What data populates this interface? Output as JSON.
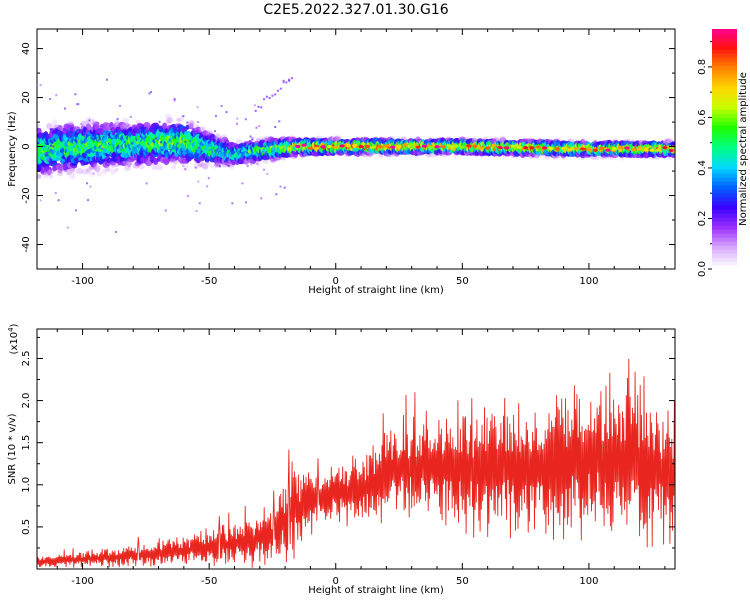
{
  "figure_title": "C2E5.2022.327.01.30.G16",
  "colors": {
    "snr_line": "#e8261f",
    "colormap": [
      "#ffffff",
      "#d9a8ff",
      "#9b30ff",
      "#3a00ff",
      "#0060ff",
      "#00d8ff",
      "#00ff80",
      "#20ff00",
      "#c8ff00",
      "#ffd400",
      "#ff8000",
      "#ff1010",
      "#ff00a0"
    ]
  },
  "chart_data": [
    {
      "type": "heatmap",
      "xlabel": "Height of straight line (km)",
      "ylabel": "Frequency (Hz)",
      "xlim": [
        -118,
        134
      ],
      "ylim": [
        -50,
        48
      ],
      "x_ticks": [
        -100,
        -50,
        0,
        50,
        100
      ],
      "y_ticks": [
        -40,
        -20,
        0,
        20,
        40
      ],
      "colorbar": {
        "label": "Normalized spectral amplitude",
        "range": [
          0,
          0.95
        ],
        "ticks": [
          0.0,
          0.2,
          0.4,
          0.6,
          0.8
        ]
      },
      "ridge_profile": [
        {
          "x": -118,
          "center": -2,
          "spread": 9,
          "peak": 0.55
        },
        {
          "x": -100,
          "center": 0,
          "spread": 9,
          "peak": 0.55
        },
        {
          "x": -80,
          "center": 1,
          "spread": 8,
          "peak": 0.55
        },
        {
          "x": -60,
          "center": 2,
          "spread": 8,
          "peak": 0.6
        },
        {
          "x": -50,
          "center": -1,
          "spread": 6,
          "peak": 0.55
        },
        {
          "x": -40,
          "center": -3,
          "spread": 4,
          "peak": 0.5
        },
        {
          "x": -25,
          "center": -1,
          "spread": 4,
          "peak": 0.6
        },
        {
          "x": -15,
          "center": 0,
          "spread": 3,
          "peak": 0.75
        },
        {
          "x": 0,
          "center": 0,
          "spread": 2.5,
          "peak": 0.85
        },
        {
          "x": 50,
          "center": 0,
          "spread": 2.5,
          "peak": 0.8
        },
        {
          "x": 100,
          "center": -1,
          "spread": 2.5,
          "peak": 0.78
        },
        {
          "x": 134,
          "center": -1,
          "spread": 2.5,
          "peak": 0.75
        }
      ]
    },
    {
      "type": "line",
      "xlabel": "Height of straight line (km)",
      "ylabel": "SNR (10 * v/v)",
      "y_multiplier_label": "(x10",
      "y_multiplier_exp": "4",
      "xlim": [
        -118,
        134
      ],
      "ylim": [
        0,
        2.85
      ],
      "x_ticks": [
        -100,
        -50,
        0,
        50,
        100
      ],
      "y_ticks": [
        0.5,
        1.0,
        1.5,
        2.0,
        2.5
      ],
      "series": [
        {
          "envelope": [
            {
              "x": -118,
              "mean": 0.08,
              "amp": 0.08
            },
            {
              "x": -100,
              "mean": 0.12,
              "amp": 0.1
            },
            {
              "x": -80,
              "mean": 0.16,
              "amp": 0.15
            },
            {
              "x": -60,
              "mean": 0.22,
              "amp": 0.18
            },
            {
              "x": -40,
              "mean": 0.3,
              "amp": 0.28
            },
            {
              "x": -25,
              "mean": 0.4,
              "amp": 0.35
            },
            {
              "x": -17,
              "mean": 0.7,
              "amp": 0.6
            },
            {
              "x": -5,
              "mean": 0.85,
              "amp": 0.3
            },
            {
              "x": 10,
              "mean": 0.95,
              "amp": 0.45
            },
            {
              "x": 25,
              "mean": 1.2,
              "amp": 0.6
            },
            {
              "x": 40,
              "mean": 1.2,
              "amp": 0.7
            },
            {
              "x": 60,
              "mean": 1.2,
              "amp": 0.9
            },
            {
              "x": 80,
              "mean": 1.2,
              "amp": 0.9
            },
            {
              "x": 100,
              "mean": 1.3,
              "amp": 0.95
            },
            {
              "x": 118,
              "mean": 1.3,
              "amp": 1.15
            },
            {
              "x": 134,
              "mean": 1.1,
              "amp": 0.9
            }
          ]
        }
      ]
    }
  ]
}
